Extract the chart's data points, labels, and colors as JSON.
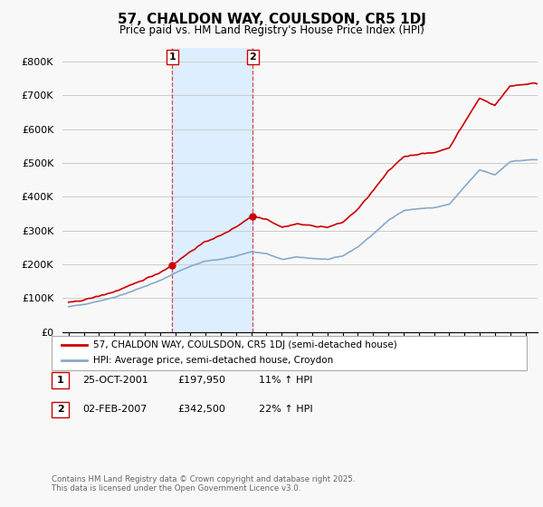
{
  "title": "57, CHALDON WAY, COULSDON, CR5 1DJ",
  "subtitle": "Price paid vs. HM Land Registry's House Price Index (HPI)",
  "legend_line1": "57, CHALDON WAY, COULSDON, CR5 1DJ (semi-detached house)",
  "legend_line2": "HPI: Average price, semi-detached house, Croydon",
  "table": [
    {
      "num": "1",
      "date": "25-OCT-2001",
      "price": "£197,950",
      "hpi": "11% ↑ HPI"
    },
    {
      "num": "2",
      "date": "02-FEB-2007",
      "price": "£342,500",
      "hpi": "22% ↑ HPI"
    }
  ],
  "footer": "Contains HM Land Registry data © Crown copyright and database right 2025.\nThis data is licensed under the Open Government Licence v3.0.",
  "ylabel_ticks": [
    "£0",
    "£100K",
    "£200K",
    "£300K",
    "£400K",
    "£500K",
    "£600K",
    "£700K",
    "£800K"
  ],
  "ytick_values": [
    0,
    100000,
    200000,
    300000,
    400000,
    500000,
    600000,
    700000,
    800000
  ],
  "ylim": [
    0,
    840000
  ],
  "sale1_year": 2001.82,
  "sale1_price": 197950,
  "sale2_year": 2007.09,
  "sale2_price": 342500,
  "red_color": "#cc0000",
  "blue_color": "#88aacc",
  "shade_color": "#ddeeff",
  "grid_color": "#cccccc",
  "background_color": "#f8f8f8"
}
